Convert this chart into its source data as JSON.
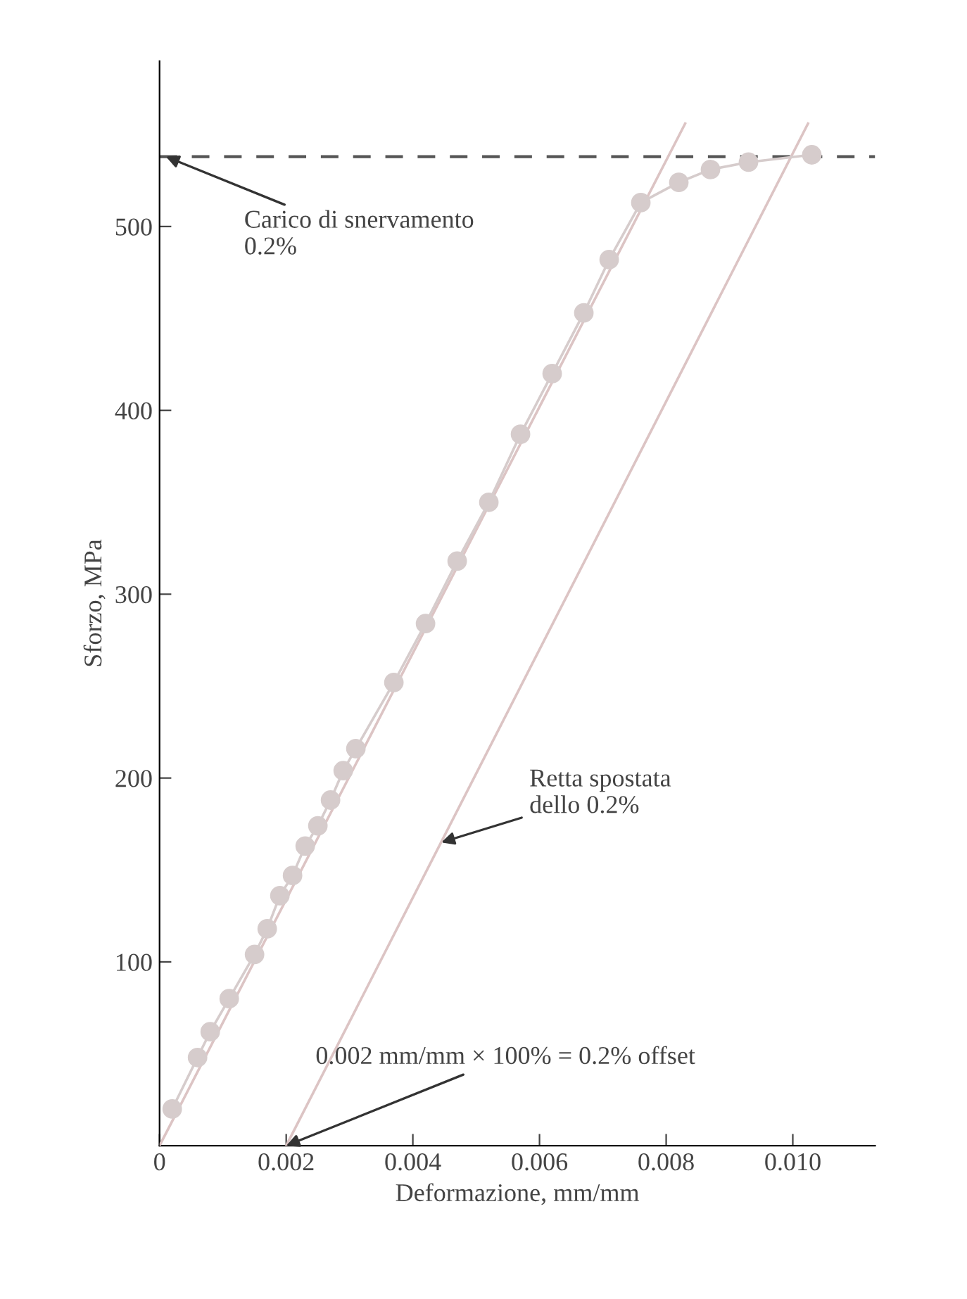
{
  "chart_data": {
    "type": "line",
    "xlabel": "Deformazione, mm/mm",
    "ylabel": "Sforzo, MPa",
    "xlim": [
      0,
      0.0113
    ],
    "ylim": [
      0,
      590
    ],
    "xticks": [
      0,
      {
        "value": 0.002,
        "label": "0.002"
      },
      {
        "value": 0.004,
        "label": "0.004"
      },
      {
        "value": 0.006,
        "label": "0.006"
      },
      {
        "value": 0.008,
        "label": "0.008"
      },
      {
        "value": 0.01,
        "label": "0.010"
      }
    ],
    "yticks": [
      100,
      200,
      300,
      400,
      500
    ],
    "grid": false,
    "legend": false,
    "series": [
      {
        "color": "#dcc4c4",
        "marker": "none",
        "line_style": "solid",
        "x": [
          0,
          0.0083
        ],
        "values": [
          0,
          556
        ]
      },
      {
        "color": "#dcc4c4",
        "marker": "none",
        "line_style": "solid",
        "x": [
          0.002,
          0.01024
        ],
        "values": [
          0,
          556
        ]
      },
      {
        "color": "#d6cccc",
        "marker": "circle",
        "line_style": "solid",
        "x": [
          0.0002,
          0.0006,
          0.0008,
          0.0011,
          0.0015,
          0.0017,
          0.0019,
          0.0021,
          0.0023,
          0.0025,
          0.0027,
          0.0029,
          0.0031,
          0.0037,
          0.0042,
          0.0047,
          0.0052,
          0.0057,
          0.0062,
          0.0067,
          0.0071,
          0.0076,
          0.0082,
          0.0087,
          0.0093,
          0.0103
        ],
        "values": [
          20,
          48,
          62,
          80,
          104,
          118,
          136,
          147,
          163,
          174,
          188,
          204,
          216,
          252,
          284,
          318,
          350,
          387,
          420,
          453,
          482,
          513,
          524,
          531,
          535,
          539
        ]
      }
    ],
    "ref_lines": [
      {
        "axis": "y",
        "value": 538,
        "color": "#555555",
        "line_style": "dashed"
      }
    ],
    "annotations": [
      {
        "text": "Carico di snervamento\n0.2%",
        "x": 0.0001,
        "y": 538
      },
      {
        "text": "Retta spostata\ndello 0.2%",
        "x": 0.00445,
        "y": 165
      },
      {
        "text": "0.002 mm/mm × 100% = 0.2% offset",
        "x": 0.002,
        "y": 0
      }
    ]
  }
}
